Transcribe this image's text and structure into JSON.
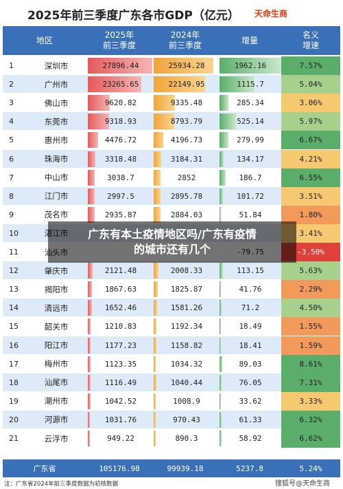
{
  "header": {
    "title": "2025年前三季度广东各市GDP（亿元）",
    "brand": "天命生商"
  },
  "columns": [
    "地区",
    "2025年\n前三季度",
    "2024年\n前三季度",
    "增量",
    "名义\n增速"
  ],
  "colors": {
    "header_bg": "#3a70b7",
    "bar_2025": "#e65a5a",
    "bar_2024": "#f1a43a",
    "bar_increase": "#5aae6a",
    "rate_high": "#5aae6a",
    "rate_mid": "#f6c86f",
    "rate_low": "#f19a5c",
    "rate_negative": "#e0403a"
  },
  "chart_data": {
    "type": "table",
    "title": "2025年前三季度广东各市GDP（亿元）",
    "rows": [
      {
        "rank": "1",
        "city": "深圳市",
        "gdp_2025": "27896.44",
        "gdp_2024": "25934.28",
        "increase": "1962.16",
        "growth": "7.57%"
      },
      {
        "rank": "2",
        "city": "广州市",
        "gdp_2025": "23265.65",
        "gdp_2024": "22149.95",
        "increase": "1115.7",
        "growth": "5.04%"
      },
      {
        "rank": "3",
        "city": "佛山市",
        "gdp_2025": "9620.82",
        "gdp_2024": "9335.48",
        "increase": "285.34",
        "growth": "3.06%"
      },
      {
        "rank": "4",
        "city": "东莞市",
        "gdp_2025": "9318.93",
        "gdp_2024": "8793.79",
        "increase": "525.14",
        "growth": "5.97%"
      },
      {
        "rank": "5",
        "city": "惠州市",
        "gdp_2025": "4476.72",
        "gdp_2024": "4196.73",
        "increase": "279.99",
        "growth": "6.67%"
      },
      {
        "rank": "6",
        "city": "珠海市",
        "gdp_2025": "3318.48",
        "gdp_2024": "3184.31",
        "increase": "134.17",
        "growth": "4.21%"
      },
      {
        "rank": "7",
        "city": "中山市",
        "gdp_2025": "3038.7",
        "gdp_2024": "2852",
        "increase": "186.7",
        "growth": "6.55%"
      },
      {
        "rank": "8",
        "city": "江门市",
        "gdp_2025": "2997.5",
        "gdp_2024": "2895.78",
        "increase": "101.72",
        "growth": "3.51%"
      },
      {
        "rank": "9",
        "city": "茂名市",
        "gdp_2025": "2935.87",
        "gdp_2024": "2884.03",
        "increase": "51.84",
        "growth": "1.80%"
      },
      {
        "rank": "10",
        "city": "湛江市",
        "gdp_2025": "",
        "gdp_2024": "",
        "increase": "",
        "growth": "3.41%"
      },
      {
        "rank": "11",
        "city": "汕头市",
        "gdp_2025": "",
        "gdp_2024": "",
        "increase": "-79.75",
        "growth": "-3.50%"
      },
      {
        "rank": "12",
        "city": "肇庆市",
        "gdp_2025": "2121.48",
        "gdp_2024": "2008.33",
        "increase": "113.15",
        "growth": "5.63%"
      },
      {
        "rank": "13",
        "city": "揭阳市",
        "gdp_2025": "1867.63",
        "gdp_2024": "1825.87",
        "increase": "41.76",
        "growth": "2.29%"
      },
      {
        "rank": "14",
        "city": "清远市",
        "gdp_2025": "1652.46",
        "gdp_2024": "1581.26",
        "increase": "71.2",
        "growth": "4.50%"
      },
      {
        "rank": "15",
        "city": "韶关市",
        "gdp_2025": "1210.83",
        "gdp_2024": "1192.34",
        "increase": "18.49",
        "growth": "1.55%"
      },
      {
        "rank": "16",
        "city": "阳江市",
        "gdp_2025": "1177.23",
        "gdp_2024": "1158.82",
        "increase": "18.41",
        "growth": "1.59%"
      },
      {
        "rank": "17",
        "city": "梅州市",
        "gdp_2025": "1123.35",
        "gdp_2024": "1034.32",
        "increase": "89.03",
        "growth": "8.61%"
      },
      {
        "rank": "18",
        "city": "汕尾市",
        "gdp_2025": "1116.49",
        "gdp_2024": "1040.44",
        "increase": "76.05",
        "growth": "7.31%"
      },
      {
        "rank": "19",
        "city": "潮州市",
        "gdp_2025": "1042.52",
        "gdp_2024": "1008.9",
        "increase": "33.62",
        "growth": "3.33%"
      },
      {
        "rank": "20",
        "city": "河源市",
        "gdp_2025": "1031.76",
        "gdp_2024": "970.43",
        "increase": "61.33",
        "growth": "6.32%"
      },
      {
        "rank": "21",
        "city": "云浮市",
        "gdp_2025": "949.22",
        "gdp_2024": "890.3",
        "increase": "58.92",
        "growth": "6.62%"
      }
    ],
    "total": {
      "city": "广东省",
      "gdp_2025": "105176.98",
      "gdp_2024": "99939.18",
      "increase": "5237.8",
      "growth": "5.24%"
    }
  },
  "note": "注：广东省2024年前三季度数据为初核数据",
  "source": "搜狐号@天命生商",
  "overlay_text": "广东有本土疫情地区吗/广东有疫情\n的城市还有几个"
}
